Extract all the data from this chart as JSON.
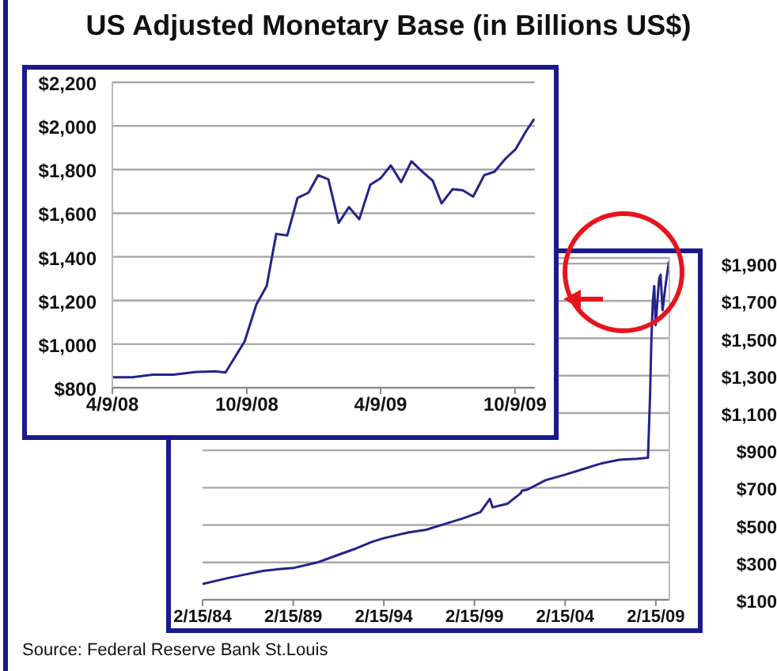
{
  "chart_data": [
    {
      "type": "line",
      "title": "US Adjusted Monetary Base (in Billions US$)",
      "color": "#24248a",
      "grid": "y",
      "x": [
        "2008-04-09",
        "2008-05-06",
        "2008-06-03",
        "2008-07-01",
        "2008-07-30",
        "2008-08-27",
        "2008-09-10",
        "2008-10-06",
        "2008-10-22",
        "2008-11-05",
        "2008-11-18",
        "2008-12-03",
        "2008-12-17",
        "2009-01-01",
        "2009-01-14",
        "2009-01-28",
        "2009-02-11",
        "2009-02-25",
        "2009-03-11",
        "2009-03-26",
        "2009-04-09",
        "2009-04-23",
        "2009-05-07",
        "2009-05-21",
        "2009-06-05",
        "2009-06-19",
        "2009-07-01",
        "2009-07-16",
        "2009-07-30",
        "2009-08-13",
        "2009-08-28",
        "2009-09-11",
        "2009-09-26",
        "2009-10-10",
        "2009-10-24",
        "2009-11-04"
      ],
      "values": [
        848,
        848,
        860,
        860,
        872,
        875,
        870,
        1012,
        1182,
        1266,
        1505,
        1498,
        1670,
        1694,
        1774,
        1755,
        1556,
        1628,
        1572,
        1730,
        1760,
        1819,
        1742,
        1838,
        1790,
        1749,
        1645,
        1710,
        1705,
        1676,
        1774,
        1790,
        1850,
        1894,
        1976,
        2032
      ],
      "xlim": [
        "2008-04-09",
        "2009-11-05"
      ],
      "xticks": [
        {
          "value": "2008-04-09",
          "label": "4/9/08"
        },
        {
          "value": "2008-10-09",
          "label": "10/9/08"
        },
        {
          "value": "2009-04-09",
          "label": "4/9/09"
        },
        {
          "value": "2009-10-09",
          "label": "10/9/09"
        }
      ],
      "ylim": [
        800,
        2200
      ],
      "yticks": [
        {
          "value": 800,
          "label": "$800"
        },
        {
          "value": 1000,
          "label": "$1,000"
        },
        {
          "value": 1200,
          "label": "$1,200"
        },
        {
          "value": 1400,
          "label": "$1,400"
        },
        {
          "value": 1600,
          "label": "$1,600"
        },
        {
          "value": 1800,
          "label": "$1,800"
        },
        {
          "value": 2000,
          "label": "$2,000"
        },
        {
          "value": 2200,
          "label": "$2,200"
        }
      ]
    },
    {
      "type": "line",
      "color": "#24248a",
      "grid": "y",
      "annotations": [
        "Source: Federal Reserve Bank St.Louis"
      ],
      "x": [
        "1984-02-15",
        "1985-06-15",
        "1986-06-15",
        "1987-06-15",
        "1988-06-15",
        "1989-02-15",
        "1990-06-15",
        "1991-06-15",
        "1992-06-15",
        "1993-06-15",
        "1994-02-15",
        "1995-06-15",
        "1996-06-15",
        "1997-06-15",
        "1998-06-15",
        "1999-06-15",
        "1999-12-20",
        "2000-02-15",
        "2000-12-15",
        "2001-09-01",
        "2001-10-01",
        "2002-01-15",
        "2003-01-15",
        "2004-02-15",
        "2005-02-15",
        "2006-02-15",
        "2007-02-15",
        "2008-02-15",
        "2008-09-10",
        "2008-10-22",
        "2008-11-18",
        "2008-12-17",
        "2009-01-14",
        "2009-02-11",
        "2009-04-23",
        "2009-05-21",
        "2009-07-01",
        "2009-08-28",
        "2009-11-04"
      ],
      "values": [
        185,
        215,
        235,
        255,
        265,
        270,
        300,
        335,
        370,
        410,
        430,
        460,
        475,
        505,
        535,
        570,
        640,
        595,
        615,
        670,
        685,
        690,
        740,
        770,
        800,
        830,
        850,
        855,
        860,
        1200,
        1500,
        1700,
        1780,
        1570,
        1820,
        1840,
        1650,
        1780,
        1910
      ],
      "xlim": [
        "1984-02-15",
        "2009-11-15"
      ],
      "xticks": [
        {
          "value": "1984-02-15",
          "label": "2/15/84"
        },
        {
          "value": "1989-02-15",
          "label": "2/15/89"
        },
        {
          "value": "1994-02-15",
          "label": "2/15/94"
        },
        {
          "value": "1999-02-15",
          "label": "2/15/99"
        },
        {
          "value": "2004-02-15",
          "label": "2/15/04"
        },
        {
          "value": "2009-02-15",
          "label": "2/15/09"
        }
      ],
      "ylim": [
        100,
        1930
      ],
      "yticks": [
        {
          "value": 100,
          "label": "$100"
        },
        {
          "value": 300,
          "label": "$300"
        },
        {
          "value": 500,
          "label": "$500"
        },
        {
          "value": 700,
          "label": "$700"
        },
        {
          "value": 900,
          "label": "$900"
        },
        {
          "value": 1100,
          "label": "$1,100"
        },
        {
          "value": 1300,
          "label": "$1,300"
        },
        {
          "value": 1500,
          "label": "$1,500"
        },
        {
          "value": 1700,
          "label": "$1,700"
        },
        {
          "value": 1900,
          "label": "$1,900"
        }
      ]
    }
  ]
}
